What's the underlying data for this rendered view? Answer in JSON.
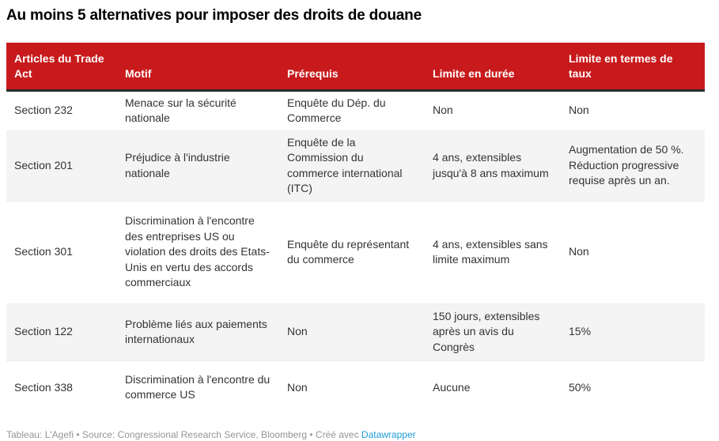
{
  "title": "Au moins 5 alternatives pour imposer des droits de douane",
  "chart_data": {
    "type": "table",
    "title": "Au moins 5 alternatives pour imposer des droits de douane",
    "columns": [
      "Articles du Trade Act",
      "Motif",
      "Prérequis",
      "Limite en durée",
      "Limite en termes de taux"
    ],
    "rows": [
      [
        "Section 232",
        "Menace sur la sécurité nationale",
        "Enquête du Dép. du Commerce",
        "Non",
        "Non"
      ],
      [
        "Section 201",
        "Préjudice à l'industrie nationale",
        "Enquête de la Commission du commerce international (ITC)",
        "4 ans, extensibles jusqu'à 8 ans maximum",
        "Augmentation de 50 %. Réduction progressive requise après un an."
      ],
      [
        "Section 301",
        "Discrimination à l'encontre des entreprises US ou violation des droits des Etats-Unis en vertu des accords commerciaux",
        "Enquête du représentant du commerce",
        "4 ans, extensibles sans limite maximum",
        "Non"
      ],
      [
        "Section 122",
        "Problème liés aux paiements internationaux",
        "Non",
        "150 jours, extensibles après un avis du Congrès",
        "15%"
      ],
      [
        "Section 338",
        "Discrimination à l'encontre du commerce US",
        "Non",
        "Aucune",
        "50%"
      ]
    ],
    "layout": {
      "header_background": "#c81a1c",
      "header_text_color": "#ffffff",
      "alternating_row_background": "#f4f4f4",
      "header_bottom_border": "#2b2b2b"
    }
  },
  "footer": {
    "prefix": "Tableau: L'Agefi • Source: Congressional Research Service, Bloomberg • Créé avec ",
    "link_label": "Datawrapper",
    "link_color": "#1d9bd7"
  }
}
